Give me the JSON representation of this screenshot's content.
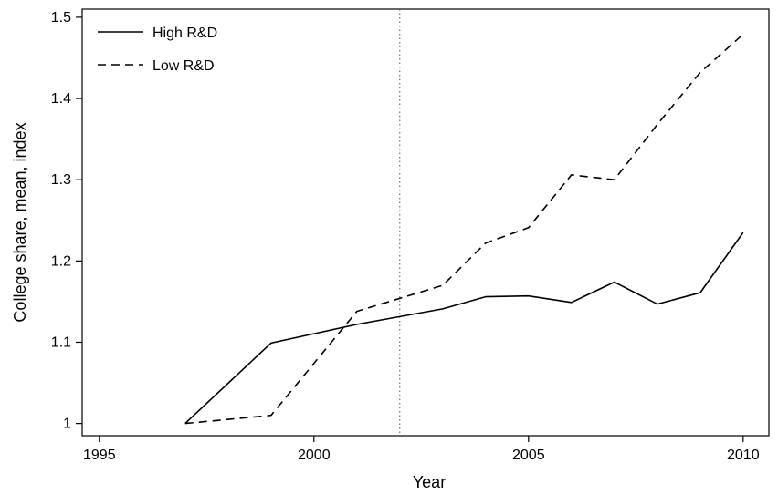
{
  "chart_data": {
    "type": "line",
    "title": "",
    "xlabel": "Year",
    "ylabel": "College share, mean, index",
    "xlim": [
      1994.6,
      2010.6
    ],
    "ylim": [
      0.985,
      1.51
    ],
    "x_ticks": [
      1995,
      2000,
      2005,
      2010
    ],
    "x_tick_labels": [
      "1995",
      "2000",
      "2005",
      "2010"
    ],
    "y_ticks": [
      1,
      1.1,
      1.2,
      1.3,
      1.4,
      1.5
    ],
    "y_tick_labels": [
      "1",
      "1.1",
      "1.2",
      "1.3",
      "1.4",
      "1.5"
    ],
    "grid": false,
    "legend_position": "top-left",
    "reference_line": {
      "x": 2002,
      "style": "dotted"
    },
    "series": [
      {
        "name": "High R&D",
        "style": "solid",
        "color": "#000000",
        "x": [
          1997,
          1999,
          2001,
          2003,
          2004,
          2005,
          2006,
          2007,
          2008,
          2009,
          2010
        ],
        "y": [
          1.0,
          1.099,
          1.122,
          1.141,
          1.156,
          1.157,
          1.149,
          1.174,
          1.147,
          1.161,
          1.235
        ]
      },
      {
        "name": "Low R&D",
        "style": "dashed",
        "color": "#000000",
        "x": [
          1997,
          1999,
          2001,
          2003,
          2004,
          2005,
          2006,
          2007,
          2008,
          2009,
          2010
        ],
        "y": [
          1.0,
          1.01,
          1.138,
          1.17,
          1.222,
          1.241,
          1.306,
          1.3,
          1.368,
          1.432,
          1.479
        ]
      }
    ]
  }
}
